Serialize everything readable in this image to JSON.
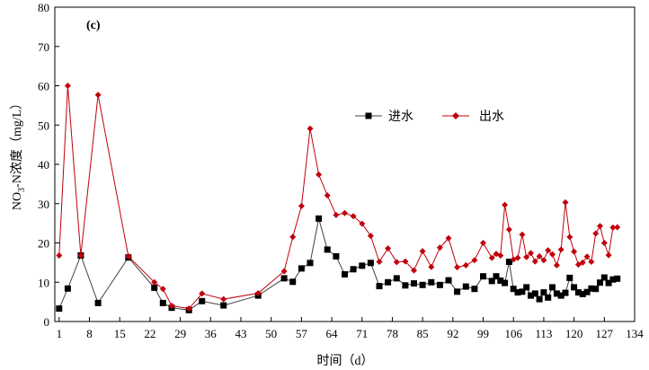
{
  "chart_data": {
    "type": "line",
    "panel_label": "(c)",
    "xlabel": "时间（d）",
    "ylabel": "NO3--N浓度（mg/L）",
    "ylabel_main": "NO",
    "ylabel_sub": "3",
    "ylabel_rest": "-N浓度（mg/L）",
    "xlim": [
      0,
      134
    ],
    "ylim": [
      0,
      80
    ],
    "x_ticks": [
      1,
      8,
      15,
      22,
      29,
      36,
      43,
      50,
      57,
      64,
      71,
      78,
      85,
      92,
      99,
      106,
      113,
      120,
      127,
      134
    ],
    "y_ticks": [
      0,
      10,
      20,
      30,
      40,
      50,
      60,
      70,
      80
    ],
    "grid": false,
    "legend_position": "center-right",
    "series": [
      {
        "name": "进水",
        "color": "#000000",
        "marker": "square",
        "x": [
          1,
          3,
          6,
          10,
          17,
          23,
          25,
          27,
          31,
          34,
          39,
          47,
          53,
          55,
          57,
          59,
          61,
          63,
          65,
          67,
          69,
          71,
          73,
          75,
          77,
          79,
          81,
          83,
          85,
          87,
          89,
          91,
          93,
          95,
          97,
          99,
          101,
          102,
          103,
          104,
          105,
          106,
          107,
          108,
          109,
          110,
          111,
          112,
          113,
          114,
          115,
          116,
          117,
          118,
          119,
          120,
          121,
          122,
          123,
          124,
          125,
          126,
          127,
          128,
          129,
          130
        ],
        "values": [
          3.3,
          8.4,
          16.8,
          4.7,
          16.3,
          8.6,
          4.7,
          3.5,
          2.9,
          5.2,
          4.1,
          6.6,
          11.0,
          10.1,
          13.5,
          14.9,
          26.2,
          18.3,
          16.6,
          12.0,
          13.3,
          14.2,
          14.9,
          9.0,
          10.0,
          11.0,
          9.2,
          9.7,
          9.3,
          10.0,
          9.3,
          10.5,
          7.6,
          8.9,
          8.3,
          11.5,
          10.3,
          11.5,
          10.4,
          9.8,
          15.2,
          8.3,
          7.4,
          7.6,
          8.7,
          6.6,
          7.1,
          5.7,
          7.4,
          6.1,
          8.7,
          7.1,
          6.6,
          7.3,
          11.1,
          8.7,
          7.4,
          7.0,
          7.5,
          8.4,
          8.3,
          9.9,
          11.2,
          9.8,
          10.7,
          10.9
        ]
      },
      {
        "name": "出水",
        "color": "#c0000c",
        "marker": "diamond",
        "x": [
          1,
          3,
          6,
          10,
          17,
          23,
          25,
          27,
          31,
          34,
          39,
          47,
          53,
          55,
          57,
          59,
          61,
          63,
          65,
          67,
          69,
          71,
          73,
          75,
          77,
          79,
          81,
          83,
          85,
          87,
          89,
          91,
          93,
          95,
          97,
          99,
          101,
          102,
          103,
          104,
          105,
          106,
          107,
          108,
          109,
          110,
          111,
          112,
          113,
          114,
          115,
          116,
          117,
          118,
          119,
          120,
          121,
          122,
          123,
          124,
          125,
          126,
          127,
          128,
          129,
          130
        ],
        "values": [
          16.8,
          60.0,
          16.8,
          57.7,
          16.6,
          10.0,
          8.3,
          4.0,
          3.3,
          7.1,
          5.7,
          7.2,
          12.8,
          21.5,
          29.4,
          49.1,
          37.4,
          32.1,
          27.1,
          27.6,
          26.8,
          24.9,
          21.8,
          15.2,
          18.6,
          15.1,
          15.3,
          13.0,
          17.9,
          13.9,
          18.8,
          21.2,
          13.8,
          14.3,
          15.6,
          20.0,
          16.2,
          17.2,
          16.8,
          29.7,
          23.4,
          15.8,
          16.2,
          22.1,
          16.4,
          17.4,
          15.3,
          16.6,
          15.6,
          18.1,
          17.1,
          14.3,
          18.3,
          30.3,
          21.5,
          17.8,
          14.5,
          15.0,
          16.5,
          15.2,
          22.4,
          24.3,
          20.0,
          16.9,
          23.9,
          24.0
        ]
      }
    ]
  }
}
